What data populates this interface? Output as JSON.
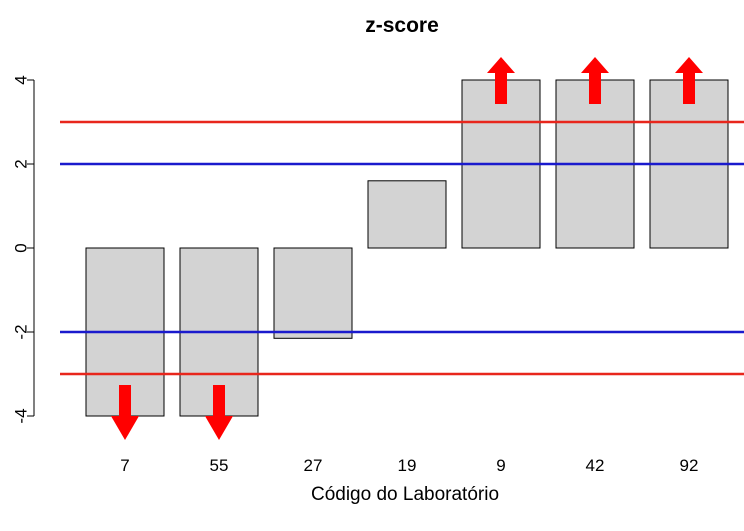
{
  "chart_data": {
    "type": "bar",
    "title": "z-score",
    "xlabel": "Código do Laboratório",
    "ylabel": "",
    "categories": [
      "7",
      "55",
      "27",
      "19",
      "9",
      "42",
      "92"
    ],
    "values": [
      -4,
      -4,
      -2.15,
      1.6,
      4,
      4,
      4
    ],
    "ylim": [
      -4.3,
      4.3
    ],
    "yticks": [
      -4,
      -2,
      0,
      2,
      4
    ],
    "ytick_labels": [
      "-4",
      "-2",
      "0",
      "2",
      "4"
    ],
    "reference_lines": [
      {
        "value": 3,
        "color": "#e8261c"
      },
      {
        "value": 2,
        "color": "#1a1acd"
      },
      {
        "value": -2,
        "color": "#1a1acd"
      },
      {
        "value": -3,
        "color": "#e8261c"
      }
    ],
    "out_of_range": [
      {
        "category": "7",
        "direction": "down"
      },
      {
        "category": "55",
        "direction": "down"
      },
      {
        "category": "9",
        "direction": "up"
      },
      {
        "category": "42",
        "direction": "up"
      },
      {
        "category": "92",
        "direction": "up"
      }
    ],
    "bar_color": "#d3d3d3",
    "arrow_color": "#ff0000",
    "grid": false,
    "legend": "none"
  }
}
